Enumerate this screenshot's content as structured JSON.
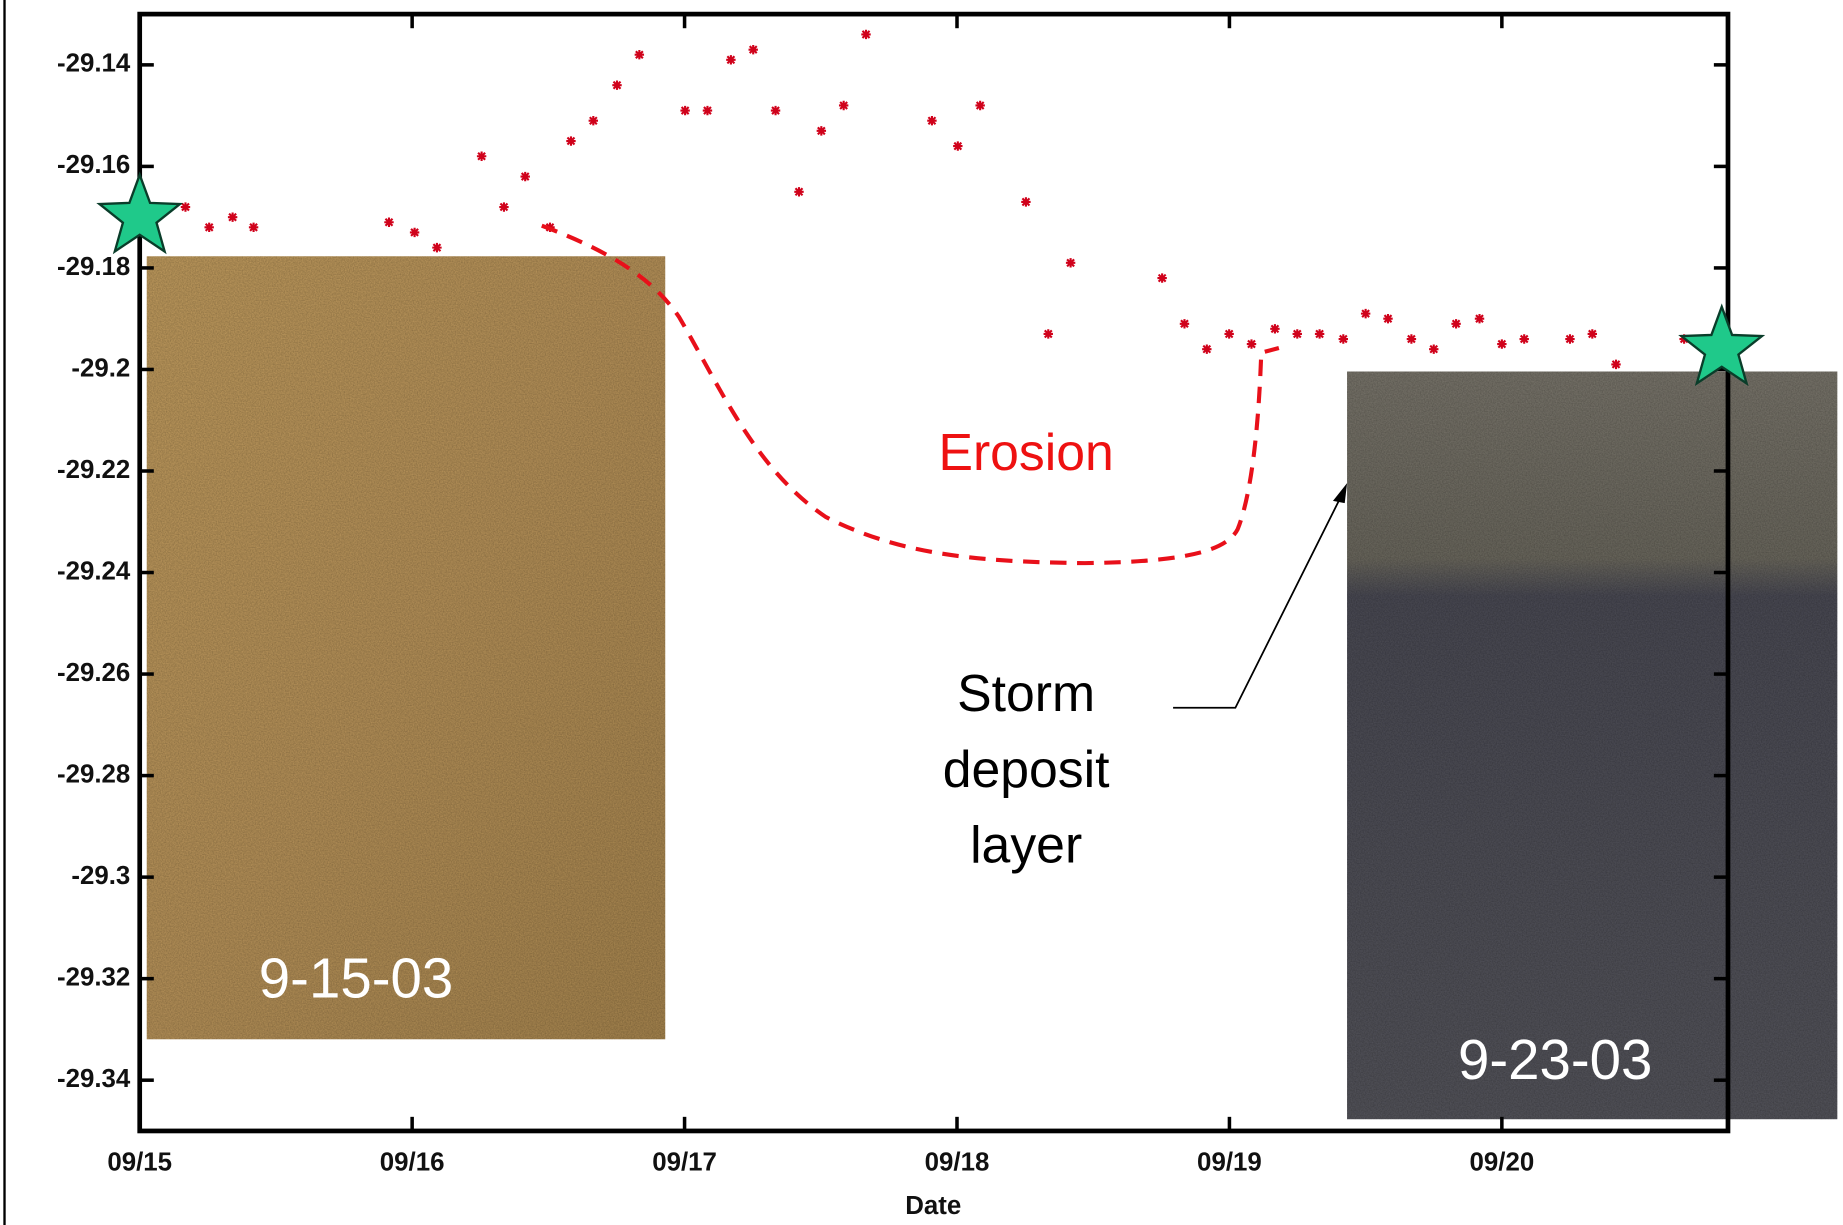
{
  "chart_data": {
    "type": "scatter",
    "x_label": "Date",
    "xlim": [
      0,
      5.83
    ],
    "ylim": [
      -29.35,
      -29.13
    ],
    "xticks": [
      {
        "value": 0,
        "label": "09/15"
      },
      {
        "value": 1,
        "label": "09/16"
      },
      {
        "value": 2,
        "label": "09/17"
      },
      {
        "value": 3,
        "label": "09/18"
      },
      {
        "value": 4,
        "label": "09/19"
      },
      {
        "value": 5,
        "label": "09/20"
      }
    ],
    "yticks": [
      -29.14,
      -29.16,
      -29.18,
      -29.2,
      -29.22,
      -29.24,
      -29.26,
      -29.28,
      -29.3,
      -29.32,
      -29.34
    ],
    "color": "#d0021b",
    "x": [
      0.168,
      0.255,
      0.341,
      0.418,
      0.915,
      1.009,
      1.091,
      1.255,
      1.337,
      1.415,
      1.506,
      1.583,
      1.665,
      1.752,
      1.834,
      2.002,
      2.084,
      2.17,
      2.252,
      2.334,
      2.42,
      2.502,
      2.584,
      2.666,
      2.908,
      3.003,
      3.085,
      3.253,
      3.335,
      3.417,
      3.753,
      3.835,
      3.917,
      3.999,
      4.081,
      4.167,
      4.249,
      4.331,
      4.418,
      4.5,
      4.582,
      4.668,
      4.75,
      4.832,
      4.918,
      5.0,
      5.082,
      5.25,
      5.332,
      5.419,
      5.669
    ],
    "values": [
      -29.168,
      -29.172,
      -29.17,
      -29.172,
      -29.171,
      -29.173,
      -29.176,
      -29.158,
      -29.168,
      -29.162,
      -29.172,
      -29.155,
      -29.151,
      -29.144,
      -29.138,
      -29.149,
      -29.149,
      -29.139,
      -29.137,
      -29.149,
      -29.165,
      -29.153,
      -29.148,
      -29.134,
      -29.151,
      -29.156,
      -29.148,
      -29.167,
      -29.193,
      -29.179,
      -29.182,
      -29.191,
      -29.196,
      -29.193,
      -29.195,
      -29.192,
      -29.193,
      -29.193,
      -29.194,
      -29.189,
      -29.19,
      -29.194,
      -29.196,
      -29.191,
      -29.19,
      -29.195,
      -29.194,
      -29.194,
      -29.193,
      -29.199,
      -29.194
    ],
    "highlights": {
      "color": "#1fc98a",
      "x": [
        0,
        5.807
      ],
      "values": [
        -29.17,
        -29.196
      ]
    },
    "annotations": {
      "erosion": "Erosion",
      "storm": [
        "Storm",
        "deposit",
        "layer"
      ],
      "photo_left": "9-15-03",
      "photo_right": "9-23-03"
    }
  }
}
